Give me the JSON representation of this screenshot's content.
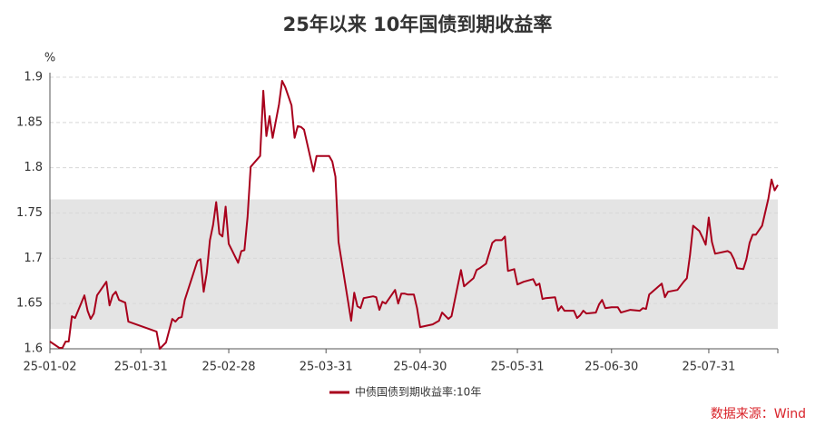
{
  "chart_data": {
    "type": "line",
    "title": "25年以来 10年国债到期收益率",
    "y_unit": "%",
    "source": "数据来源：Wind",
    "x": [
      "25-01-02",
      "25-01-05",
      "25-01-06",
      "25-01-07",
      "25-01-08",
      "25-01-09",
      "25-01-10",
      "25-01-13",
      "25-01-14",
      "25-01-15",
      "25-01-16",
      "25-01-17",
      "25-01-20",
      "25-01-21",
      "25-01-22",
      "25-01-23",
      "25-01-24",
      "25-01-26",
      "25-01-27",
      "25-02-05",
      "25-02-06",
      "25-02-08",
      "25-02-10",
      "25-02-11",
      "25-02-12",
      "25-02-13",
      "25-02-14",
      "25-02-18",
      "25-02-19",
      "25-02-20",
      "25-02-21",
      "25-02-22",
      "25-02-23",
      "25-02-24",
      "25-02-25",
      "25-02-26",
      "25-02-27",
      "25-02-28",
      "25-03-03",
      "25-03-04",
      "25-03-05",
      "25-03-06",
      "25-03-07",
      "25-03-10",
      "25-03-11",
      "25-03-12",
      "25-03-13",
      "25-03-14",
      "25-03-16",
      "25-03-17",
      "25-03-18",
      "25-03-20",
      "25-03-21",
      "25-03-22",
      "25-03-23",
      "25-03-24",
      "25-03-27",
      "25-03-28",
      "25-03-29",
      "25-04-01",
      "25-04-02",
      "25-04-03",
      "25-04-04",
      "25-04-08",
      "25-04-09",
      "25-04-10",
      "25-04-11",
      "25-04-12",
      "25-04-15",
      "25-04-16",
      "25-04-17",
      "25-04-18",
      "25-04-19",
      "25-04-22",
      "25-04-23",
      "25-04-24",
      "25-04-25",
      "25-04-26",
      "25-04-28",
      "25-04-29",
      "25-04-30",
      "25-05-04",
      "25-05-06",
      "25-05-07",
      "25-05-09",
      "25-05-10",
      "25-05-12",
      "25-05-13",
      "25-05-14",
      "25-05-16",
      "25-05-17",
      "25-05-18",
      "25-05-19",
      "25-05-21",
      "25-05-23",
      "25-05-24",
      "25-05-26",
      "25-05-27",
      "25-05-28",
      "25-05-30",
      "25-05-31",
      "25-06-02",
      "25-06-05",
      "25-06-06",
      "25-06-07",
      "25-06-08",
      "25-06-09",
      "25-06-12",
      "25-06-13",
      "25-06-14",
      "25-06-15",
      "25-06-18",
      "25-06-19",
      "25-06-20",
      "25-06-21",
      "25-06-22",
      "25-06-25",
      "25-06-26",
      "25-06-27",
      "25-06-28",
      "25-06-30",
      "25-07-02",
      "25-07-03",
      "25-07-04",
      "25-07-06",
      "25-07-09",
      "25-07-10",
      "25-07-11",
      "25-07-12",
      "25-07-14",
      "25-07-16",
      "25-07-17",
      "25-07-18",
      "25-07-21",
      "25-07-23",
      "25-07-24",
      "25-07-25",
      "25-07-26",
      "25-07-28",
      "25-07-29",
      "25-07-30",
      "25-07-31",
      "25-08-01",
      "25-08-02",
      "25-08-06",
      "25-08-07",
      "25-08-08",
      "25-08-09",
      "25-08-11",
      "25-08-12",
      "25-08-13",
      "25-08-14",
      "25-08-15",
      "25-08-17",
      "25-08-19",
      "25-08-20",
      "25-08-21",
      "25-08-22"
    ],
    "series": [
      {
        "name": "中债国债到期收益率:10年",
        "color": "#a8001c",
        "values": [
          1.608,
          1.601,
          1.601,
          1.608,
          1.608,
          1.636,
          1.634,
          1.659,
          1.642,
          1.633,
          1.639,
          1.659,
          1.674,
          1.648,
          1.659,
          1.663,
          1.654,
          1.651,
          1.63,
          1.619,
          1.6,
          1.607,
          1.633,
          1.63,
          1.634,
          1.635,
          1.654,
          1.697,
          1.699,
          1.663,
          1.684,
          1.72,
          1.737,
          1.762,
          1.727,
          1.724,
          1.757,
          1.716,
          1.695,
          1.708,
          1.709,
          1.746,
          1.801,
          1.813,
          1.885,
          1.835,
          1.857,
          1.833,
          1.87,
          1.896,
          1.889,
          1.869,
          1.833,
          1.846,
          1.845,
          1.842,
          1.796,
          1.813,
          1.813,
          1.813,
          1.807,
          1.79,
          1.718,
          1.631,
          1.662,
          1.647,
          1.645,
          1.656,
          1.658,
          1.657,
          1.643,
          1.652,
          1.65,
          1.665,
          1.65,
          1.661,
          1.661,
          1.66,
          1.66,
          1.645,
          1.624,
          1.627,
          1.631,
          1.64,
          1.633,
          1.636,
          1.67,
          1.687,
          1.669,
          1.675,
          1.678,
          1.687,
          1.689,
          1.694,
          1.717,
          1.72,
          1.72,
          1.724,
          1.686,
          1.688,
          1.671,
          1.674,
          1.677,
          1.67,
          1.672,
          1.655,
          1.656,
          1.657,
          1.642,
          1.647,
          1.642,
          1.642,
          1.634,
          1.637,
          1.642,
          1.639,
          1.64,
          1.649,
          1.654,
          1.645,
          1.646,
          1.646,
          1.64,
          1.641,
          1.643,
          1.642,
          1.645,
          1.644,
          1.66,
          1.666,
          1.672,
          1.657,
          1.663,
          1.665,
          1.674,
          1.678,
          1.703,
          1.736,
          1.73,
          1.723,
          1.715,
          1.745,
          1.718,
          1.705,
          1.708,
          1.706,
          1.699,
          1.689,
          1.688,
          1.699,
          1.717,
          1.726,
          1.726,
          1.736,
          1.766,
          1.787,
          1.775,
          1.781
        ]
      }
    ],
    "xlim": [
      "25-01-02",
      "25-08-22"
    ],
    "xticks": [
      "25-01-02",
      "25-01-31",
      "25-02-28",
      "25-03-31",
      "25-04-30",
      "25-05-31",
      "25-06-30",
      "25-07-31"
    ],
    "ylim": [
      1.6,
      1.9
    ],
    "yticks": [
      1.6,
      1.65,
      1.7,
      1.75,
      1.8,
      1.85,
      1.9
    ],
    "shaded_range": [
      1.622,
      1.765
    ],
    "shaded_color": "#e4e4e4",
    "grid": true,
    "legend": "bottom"
  }
}
